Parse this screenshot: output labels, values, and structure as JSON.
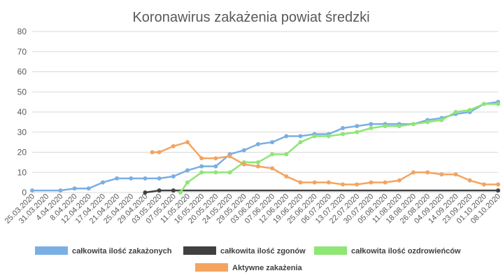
{
  "chart_data": {
    "type": "line",
    "title": "Koronawirus zakażenia powiat średzki",
    "ylim": [
      0,
      80
    ],
    "yticks": [
      0,
      10,
      20,
      30,
      40,
      50,
      60,
      70,
      80
    ],
    "grid": true,
    "legend_position": "bottom",
    "x_tick_labels": [
      "25.03.2020",
      "31.03.2020",
      "4.04.2020",
      "8.04.2020",
      "12.04.2020",
      "17.04.2020",
      "21.04.2020",
      "25.04.2020",
      "29.04.2020",
      "03.05.2020",
      "07.05.2020",
      "11.05.2020",
      "16.05.2020",
      "20.05.2020",
      "24.05.2020",
      "29.05.2020",
      "03.06.2020",
      "07.06.2020",
      "12.06.2020",
      "19.06.2020",
      "25.06.2020",
      "06.07.2020",
      "13.07.2020",
      "22.07.2020",
      "30.07.2020",
      "05.08.2020",
      "11.08.2020",
      "18.08.2020",
      "26.08.2020",
      "04.09.2020",
      "14.09.2020",
      "23.09.2020",
      "01.10.2020",
      "08.10.2020"
    ],
    "series": [
      {
        "name": "całkowita ilość zakażonych",
        "color": "#7aafe3",
        "x": [
          0,
          2,
          3,
          4,
          5,
          6,
          7,
          8,
          9,
          10,
          11,
          12,
          13,
          14,
          15,
          16,
          17,
          18,
          19,
          20,
          21,
          22,
          23,
          24,
          25,
          26,
          27,
          28,
          29,
          30,
          31,
          32,
          33
        ],
        "y": [
          1,
          1,
          2,
          2,
          5,
          7,
          7,
          7,
          7,
          8,
          11,
          13,
          13,
          19,
          21,
          24,
          25,
          28,
          28,
          29,
          29,
          32,
          33,
          34,
          34,
          34,
          34,
          36,
          37,
          39,
          40,
          44,
          45
        ]
      },
      {
        "name": "całkowita ilość zgonów",
        "color": "#404040",
        "x": [
          8,
          9,
          10,
          33
        ],
        "y": [
          0,
          1,
          1,
          1
        ]
      },
      {
        "name": "całkowita ilość ozdrowieńców",
        "color": "#8ee675",
        "x": [
          10.5,
          11,
          12,
          13,
          14,
          15,
          16,
          17,
          18,
          19,
          20,
          21,
          22,
          23,
          24,
          25,
          26,
          27,
          28,
          29,
          30,
          31,
          32,
          33
        ],
        "y": [
          0,
          5,
          10,
          10,
          10,
          15,
          15,
          19,
          19,
          25,
          28,
          28,
          29,
          30,
          32,
          33,
          33,
          34,
          35,
          36,
          40,
          41,
          44,
          44
        ]
      },
      {
        "name": "Aktywne zakażenia",
        "color": "#f4a460",
        "x": [
          8.5,
          9,
          10,
          11,
          12,
          13,
          14,
          15,
          16,
          17,
          18,
          19,
          20,
          21,
          22,
          23,
          24,
          25,
          26,
          27,
          28,
          29,
          30,
          31,
          32,
          33
        ],
        "y": [
          20,
          20,
          23,
          25,
          17,
          17,
          18,
          14,
          13,
          12,
          8,
          5,
          5,
          5,
          4,
          4,
          5,
          5,
          6,
          10,
          10,
          9,
          9,
          6,
          4,
          4
        ]
      }
    ]
  }
}
